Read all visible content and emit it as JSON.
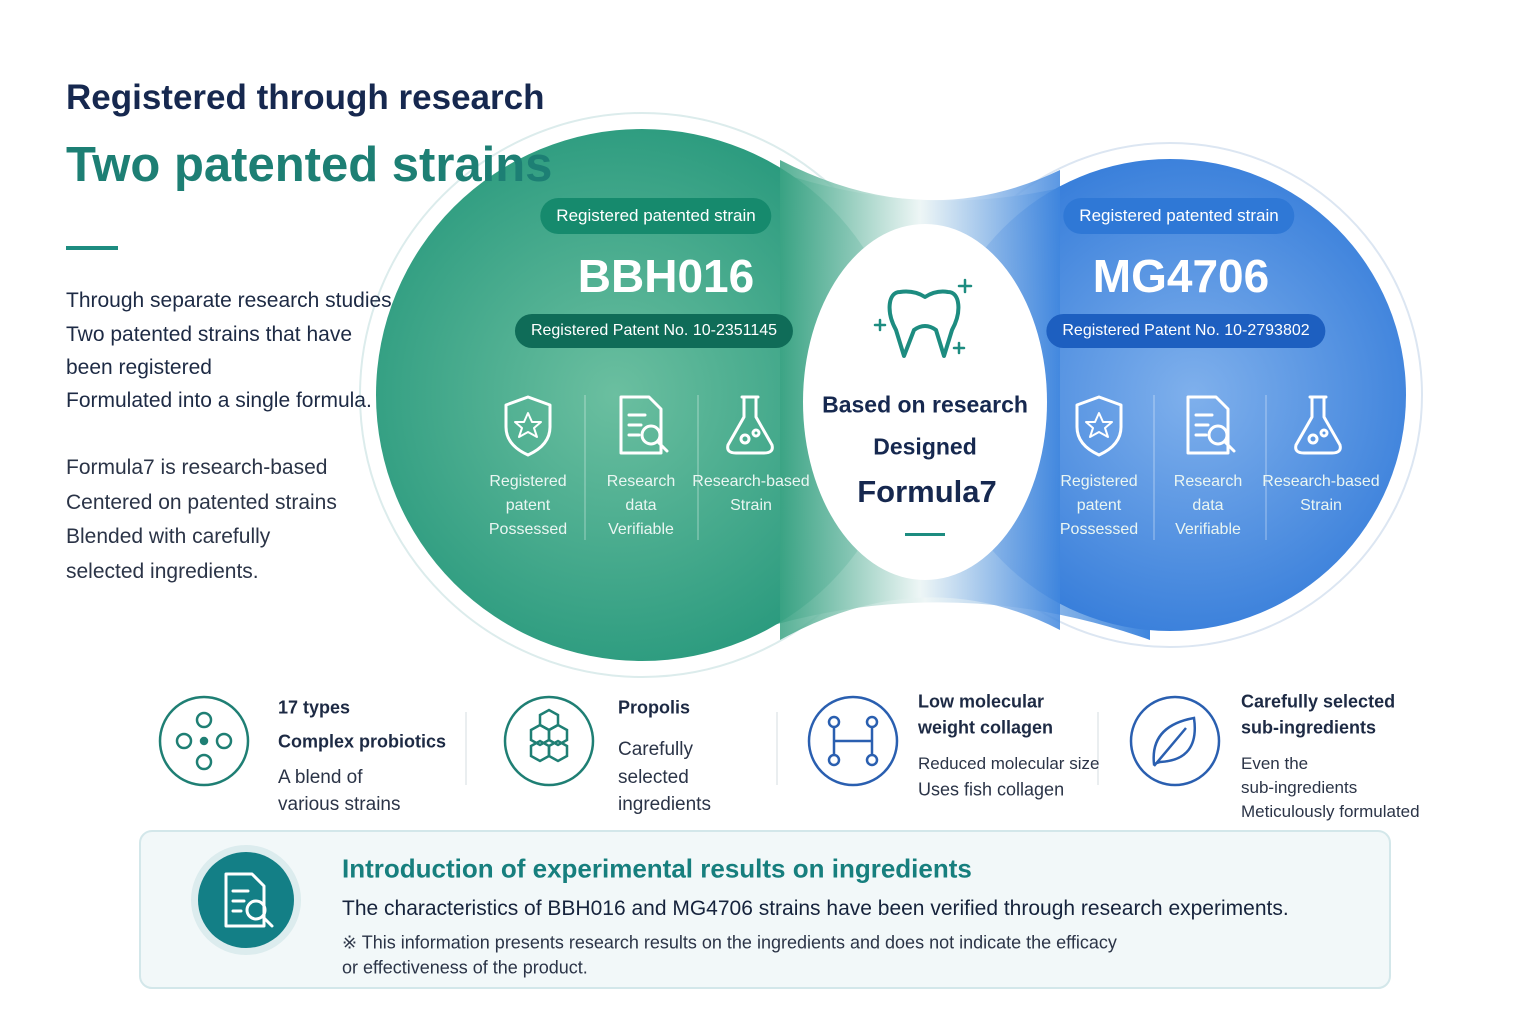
{
  "header": {
    "subtitle": "Registered through research",
    "title": "Two patented strains"
  },
  "intro": {
    "paragraph1": [
      "Through separate research studies",
      "Two patented strains that have",
      "been registered",
      "Formulated into a single formula."
    ],
    "paragraph2": [
      "Formula7 is research-based",
      "Centered on patented strains",
      "Blended with carefully",
      "selected ingredients."
    ]
  },
  "strains": [
    {
      "badge": "Registered patented strain",
      "name": "BBH016",
      "patent": "Registered Patent No. 10-2351145",
      "features": [
        [
          "Registered",
          "patent",
          "Possessed"
        ],
        [
          "Research",
          "data",
          "Verifiable"
        ],
        [
          "Research-based",
          "Strain"
        ]
      ]
    },
    {
      "badge": "Registered patented strain",
      "name": "MG4706",
      "patent": "Registered Patent No. 10-2793802",
      "features": [
        [
          "Registered",
          "patent",
          "Possessed"
        ],
        [
          "Research",
          "data",
          "Verifiable"
        ],
        [
          "Research-based",
          "Strain"
        ]
      ]
    }
  ],
  "center": [
    "Based on research",
    "Designed",
    "Formula7"
  ],
  "ingredients": [
    {
      "title": [
        "17 types",
        "Complex probiotics"
      ],
      "desc": [
        "A blend of",
        "various strains"
      ]
    },
    {
      "title": [
        "Propolis"
      ],
      "desc": [
        "Carefully",
        "selected",
        "ingredients"
      ]
    },
    {
      "title": [
        "Low molecular",
        "weight collagen"
      ],
      "desc": [
        "Reduced molecular size",
        "Uses fish collagen"
      ]
    },
    {
      "title": [
        "Carefully selected",
        "sub-ingredients"
      ],
      "desc": [
        "Even the",
        "sub-ingredients",
        "Meticulously formulated"
      ]
    }
  ],
  "note": {
    "title": "Introduction of experimental results on ingredients",
    "text": "The characteristics of BBH016 and MG4706 strains have been verified through research experiments.",
    "disclaimer": [
      "※ This information presents research results on the ingredients and does not indicate the efficacy",
      "or effectiveness of the product."
    ]
  }
}
